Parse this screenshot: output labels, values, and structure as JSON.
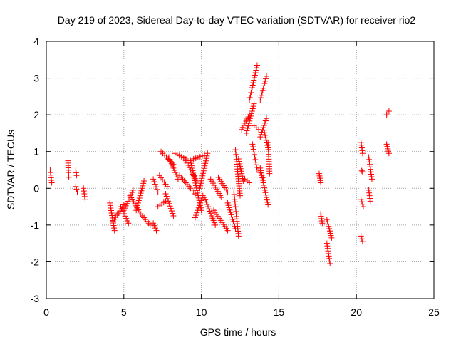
{
  "chart_data": {
    "type": "scatter",
    "title": "Day 219 of 2023, Sidereal Day-to-day VTEC variation (SDTVAR) for receiver rio2",
    "xlabel": "GPS time / hours",
    "ylabel": "SDTVAR / TECUs",
    "xlim": [
      0,
      25
    ],
    "ylim": [
      -3,
      4
    ],
    "xticks": [
      0,
      5,
      10,
      15,
      20,
      25
    ],
    "yticks": [
      -3,
      -2,
      -1,
      0,
      1,
      2,
      3,
      4
    ],
    "grid": true,
    "marker": "+",
    "marker_color": "#ff0000",
    "series": [
      {
        "name": "SDTVAR",
        "segments": [
          {
            "x": [
              0.25,
              0.35
            ],
            "y": [
              0.5,
              0.15
            ]
          },
          {
            "x": [
              1.4,
              1.45
            ],
            "y": [
              0.75,
              0.3
            ]
          },
          {
            "x": [
              1.9,
              1.95
            ],
            "y": [
              0.5,
              0.35
            ]
          },
          {
            "x": [
              1.9,
              2.0
            ],
            "y": [
              0.05,
              -0.1
            ]
          },
          {
            "x": [
              2.4,
              2.5
            ],
            "y": [
              0.0,
              -0.3
            ]
          },
          {
            "x": [
              4.1,
              4.4
            ],
            "y": [
              -0.4,
              -1.15
            ]
          },
          {
            "x": [
              4.3,
              5.0
            ],
            "y": [
              -0.9,
              -0.45
            ]
          },
          {
            "x": [
              4.8,
              5.3
            ],
            "y": [
              -0.5,
              -0.95
            ]
          },
          {
            "x": [
              5.0,
              5.6
            ],
            "y": [
              -0.6,
              -0.05
            ]
          },
          {
            "x": [
              5.4,
              6.1
            ],
            "y": [
              -0.2,
              -0.7
            ]
          },
          {
            "x": [
              5.8,
              6.3
            ],
            "y": [
              -0.6,
              0.2
            ]
          },
          {
            "x": [
              6.2,
              6.7
            ],
            "y": [
              -0.75,
              -1.0
            ]
          },
          {
            "x": [
              6.9,
              7.1
            ],
            "y": [
              -0.95,
              -1.15
            ]
          },
          {
            "x": [
              6.9,
              7.2
            ],
            "y": [
              0.25,
              -0.1
            ]
          },
          {
            "x": [
              7.2,
              7.7
            ],
            "y": [
              -0.5,
              -0.35
            ]
          },
          {
            "x": [
              7.3,
              7.8
            ],
            "y": [
              0.35,
              0.05
            ]
          },
          {
            "x": [
              7.7,
              8.2
            ],
            "y": [
              -0.15,
              -0.75
            ]
          },
          {
            "x": [
              7.4,
              8.2
            ],
            "y": [
              1.0,
              0.65
            ]
          },
          {
            "x": [
              7.9,
              8.5
            ],
            "y": [
              0.85,
              0.25
            ]
          },
          {
            "x": [
              8.3,
              9.0
            ],
            "y": [
              0.95,
              0.8
            ]
          },
          {
            "x": [
              8.6,
              9.6
            ],
            "y": [
              0.35,
              -0.15
            ]
          },
          {
            "x": [
              9.0,
              9.7
            ],
            "y": [
              0.75,
              0.2
            ]
          },
          {
            "x": [
              9.3,
              10.0
            ],
            "y": [
              0.75,
              -0.6
            ]
          },
          {
            "x": [
              9.5,
              10.2
            ],
            "y": [
              0.8,
              0.9
            ]
          },
          {
            "x": [
              9.6,
              10.1
            ],
            "y": [
              -0.8,
              -0.2
            ]
          },
          {
            "x": [
              9.9,
              10.4
            ],
            "y": [
              0.0,
              0.95
            ]
          },
          {
            "x": [
              10.2,
              10.9
            ],
            "y": [
              -0.25,
              -1.0
            ]
          },
          {
            "x": [
              10.6,
              11.3
            ],
            "y": [
              0.25,
              -0.25
            ]
          },
          {
            "x": [
              10.8,
              11.7
            ],
            "y": [
              -0.6,
              -1.15
            ]
          },
          {
            "x": [
              11.1,
              11.7
            ],
            "y": [
              0.3,
              -0.1
            ]
          },
          {
            "x": [
              11.7,
              12.2
            ],
            "y": [
              -0.4,
              -1.1
            ]
          },
          {
            "x": [
              12.1,
              12.4
            ],
            "y": [
              -0.1,
              -1.3
            ]
          },
          {
            "x": [
              12.2,
              12.5
            ],
            "y": [
              1.05,
              -0.2
            ]
          },
          {
            "x": [
              12.4,
              12.7
            ],
            "y": [
              0.8,
              0.2
            ]
          },
          {
            "x": [
              12.6,
              13.1
            ],
            "y": [
              1.6,
              2.0
            ]
          },
          {
            "x": [
              12.8,
              13.1
            ],
            "y": [
              0.25,
              0.15
            ]
          },
          {
            "x": [
              12.9,
              13.4
            ],
            "y": [
              1.5,
              2.3
            ]
          },
          {
            "x": [
              13.1,
              13.6
            ],
            "y": [
              2.4,
              3.35
            ]
          },
          {
            "x": [
              13.3,
              13.6
            ],
            "y": [
              1.2,
              0.5
            ]
          },
          {
            "x": [
              13.4,
              13.7
            ],
            "y": [
              1.7,
              1.6
            ]
          },
          {
            "x": [
              13.7,
              14.0
            ],
            "y": [
              0.5,
              0.3
            ]
          },
          {
            "x": [
              13.8,
              14.2
            ],
            "y": [
              2.4,
              3.05
            ]
          },
          {
            "x": [
              13.8,
              14.2
            ],
            "y": [
              1.4,
              1.9
            ]
          },
          {
            "x": [
              13.8,
              14.3
            ],
            "y": [
              0.55,
              -0.45
            ]
          },
          {
            "x": [
              14.0,
              14.3
            ],
            "y": [
              1.65,
              1.1
            ]
          },
          {
            "x": [
              14.3,
              14.4
            ],
            "y": [
              1.25,
              0.4
            ]
          },
          {
            "x": [
              17.6,
              17.7
            ],
            "y": [
              0.4,
              0.15
            ]
          },
          {
            "x": [
              17.7,
              17.8
            ],
            "y": [
              -0.7,
              -0.95
            ]
          },
          {
            "x": [
              18.1,
              18.4
            ],
            "y": [
              -0.85,
              -1.35
            ]
          },
          {
            "x": [
              18.1,
              18.3
            ],
            "y": [
              -1.5,
              -2.05
            ]
          },
          {
            "x": [
              20.3,
              20.4
            ],
            "y": [
              1.25,
              0.95
            ]
          },
          {
            "x": [
              20.3,
              20.4
            ],
            "y": [
              0.5,
              0.45
            ]
          },
          {
            "x": [
              20.3,
              20.45
            ],
            "y": [
              -0.3,
              -0.5
            ]
          },
          {
            "x": [
              20.3,
              20.4
            ],
            "y": [
              -1.3,
              -1.45
            ]
          },
          {
            "x": [
              20.8,
              21.0
            ],
            "y": [
              0.85,
              0.25
            ]
          },
          {
            "x": [
              20.8,
              20.9
            ],
            "y": [
              -0.05,
              -0.35
            ]
          },
          {
            "x": [
              21.95,
              22.1
            ],
            "y": [
              2.0,
              2.1
            ]
          },
          {
            "x": [
              21.95,
              22.1
            ],
            "y": [
              1.2,
              0.95
            ]
          }
        ]
      }
    ]
  }
}
